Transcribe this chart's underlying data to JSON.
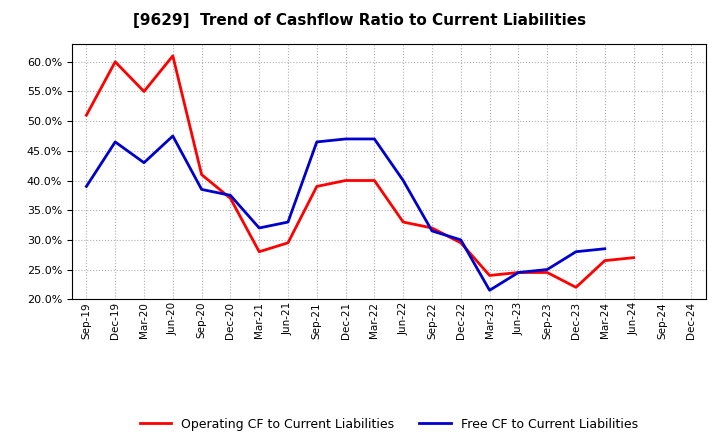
{
  "title": "[9629]  Trend of Cashflow Ratio to Current Liabilities",
  "x_labels": [
    "Sep-19",
    "Dec-19",
    "Mar-20",
    "Jun-20",
    "Sep-20",
    "Dec-20",
    "Mar-21",
    "Jun-21",
    "Sep-21",
    "Dec-21",
    "Mar-22",
    "Jun-22",
    "Sep-22",
    "Dec-22",
    "Mar-23",
    "Jun-23",
    "Sep-23",
    "Dec-23",
    "Mar-24",
    "Jun-24",
    "Sep-24",
    "Dec-24"
  ],
  "operating_cf": [
    0.51,
    0.6,
    0.55,
    0.61,
    0.41,
    0.37,
    0.28,
    0.295,
    0.39,
    0.4,
    0.4,
    0.33,
    0.32,
    0.295,
    0.24,
    0.245,
    0.245,
    0.22,
    0.265,
    0.27,
    null,
    null
  ],
  "free_cf": [
    0.39,
    0.465,
    0.43,
    0.475,
    0.385,
    0.375,
    0.32,
    0.33,
    0.465,
    0.47,
    0.47,
    0.4,
    0.315,
    0.3,
    0.215,
    0.245,
    0.25,
    0.28,
    0.285,
    null,
    null,
    null
  ],
  "operating_color": "#ff0000",
  "free_color": "#0000cc",
  "ylim": [
    0.2,
    0.63
  ],
  "yticks": [
    0.2,
    0.25,
    0.3,
    0.35,
    0.4,
    0.45,
    0.5,
    0.55,
    0.6
  ],
  "legend_operating": "Operating CF to Current Liabilities",
  "legend_free": "Free CF to Current Liabilities",
  "background_color": "#ffffff",
  "grid_color": "#b0b0b0"
}
